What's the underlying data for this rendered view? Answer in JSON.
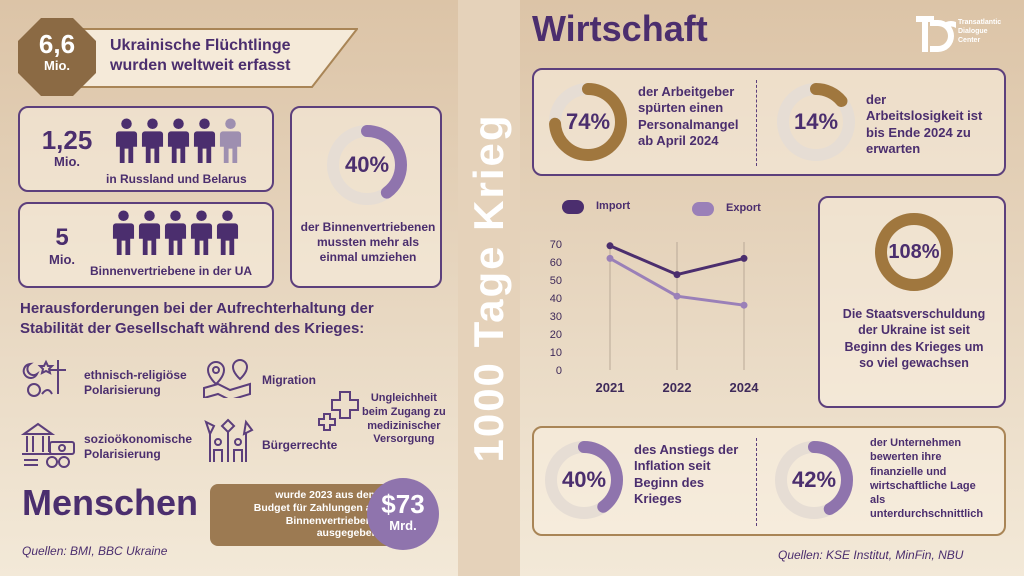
{
  "left": {
    "banner": {
      "number": "6,6",
      "unit": "Mio.",
      "text_line1": "Ukrainische Flüchtlinge",
      "text_line2": "wurden weltweit erfasst"
    },
    "russia_card": {
      "number": "1,25",
      "unit": "Mio.",
      "caption": "in Russland und Belarus",
      "people_full": 4,
      "people_partial": 1
    },
    "idp_card": {
      "number": "5",
      "unit": "Mio.",
      "caption": "Binnenvertriebene in der UA",
      "people_full": 5
    },
    "moved_card": {
      "percent_label": "40%",
      "percent": 40,
      "line1": "der Binnenvertriebenen",
      "line2": "mussten mehr als",
      "line3": "einmal umziehen"
    },
    "challenges": {
      "heading_line1": "Herausforderungen bei der Aufrechterhaltung der",
      "heading_line2": "Stabilität der Gesellschaft während des Krieges:",
      "items": [
        {
          "line1": "ethnisch-religiöse",
          "line2": "Polarisierung",
          "icon": "religion-symbols-icon"
        },
        {
          "line1": "Migration",
          "line2": "",
          "icon": "map-pins-icon"
        },
        {
          "line1": "Ungleichheit",
          "line2": "beim Zugang zu",
          "line3": "medizinischer",
          "line4": "Versorgung",
          "icon": "medical-cross-icon"
        },
        {
          "line1": "sozioökonomische",
          "line2": "Polarisierung",
          "icon": "bank-money-icon"
        },
        {
          "line1": "Bürgerrechte",
          "line2": "",
          "icon": "protest-signs-icon"
        }
      ]
    },
    "section_title": "Menschen",
    "budget": {
      "line1": "wurde 2023 aus dem",
      "line2": "Budget für Zahlungen an",
      "line3": "Binnenvertriebene",
      "line4": "ausgegeben",
      "amount": "$73",
      "unit": "Mrd."
    },
    "sources": "Quellen: BMI, BBC Ukraine"
  },
  "center": {
    "title": "1000 Tage Krieg"
  },
  "right": {
    "section_title": "Wirtschaft",
    "logo": {
      "line1": "Transatlantic",
      "line2": "Dialogue",
      "line3": "Center"
    },
    "employers": {
      "percent_label": "74%",
      "percent": 74,
      "line1": "der Arbeitgeber",
      "line2": "spürten einen",
      "line3": "Personalmangel",
      "line4": "ab April 2024"
    },
    "unemployment": {
      "percent_label": "14%",
      "percent": 14,
      "line1": "der",
      "line2": "Arbeitslosigkeit ist",
      "line3": "bis Ende 2024 zu",
      "line4": "erwarten"
    },
    "debt": {
      "percent_label": "108%",
      "percent": 100,
      "line1": "Die Staatsverschuldung",
      "line2": "der Ukraine ist seit",
      "line3": "Beginn des Krieges um",
      "line4": "so viel gewachsen"
    },
    "inflation": {
      "percent_label": "40%",
      "percent": 40,
      "line1": "des Anstiegs der",
      "line2": "Inflation seit",
      "line3": "Beginn des",
      "line4": "Krieges"
    },
    "companies": {
      "percent_label": "42%",
      "percent": 42,
      "line1": "der Unternehmen",
      "line2": "bewerten ihre",
      "line3": "finanzielle und",
      "line4": "wirtschaftliche Lage",
      "line5": "als",
      "line6": "unterdurchschnittlich"
    },
    "sources": "Quellen: KSE Institut, MinFin, NBU"
  },
  "chart_data": {
    "type": "line",
    "categories": [
      "2021",
      "2022",
      "2024"
    ],
    "series": [
      {
        "name": "Import",
        "values": [
          69,
          53,
          62
        ],
        "color": "#4b2e6e"
      },
      {
        "name": "Export",
        "values": [
          62,
          41,
          36
        ],
        "color": "#9a80b8"
      }
    ],
    "ylim": [
      0,
      70
    ],
    "yticks": [
      0,
      10,
      20,
      30,
      40,
      50,
      60,
      70
    ],
    "legend_position": "top",
    "grid": "vertical"
  },
  "colors": {
    "purple_dark": "#4b2e6e",
    "purple_mid": "#8f74ad",
    "purple_light": "#c8b6d8",
    "brown": "#a0773e",
    "brown_dark": "#8b6a44",
    "ring_bg": "#e6ddd4"
  }
}
